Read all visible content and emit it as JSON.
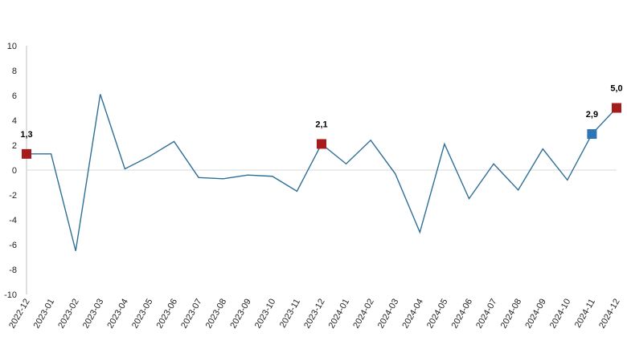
{
  "chart_data": {
    "type": "line",
    "title": "",
    "xlabel": "",
    "ylabel": "",
    "ylim": [
      -10,
      10
    ],
    "yticks": [
      10,
      8,
      6,
      4,
      2,
      0,
      -2,
      -4,
      -6,
      -8,
      -10
    ],
    "grid": false,
    "categories": [
      "2022-12",
      "2023-01",
      "2023-02",
      "2023-03",
      "2023-04",
      "2023-05",
      "2023-06",
      "2023-07",
      "2023-08",
      "2023-09",
      "2023-10",
      "2023-11",
      "2023-12",
      "2024-01",
      "2024-02",
      "2024-03",
      "2024-04",
      "2024-05",
      "2024-06",
      "2024-07",
      "2024-08",
      "2024-09",
      "2024-10",
      "2024-11",
      "2024-12"
    ],
    "series": [
      {
        "values": [
          1.3,
          1.3,
          -6.5,
          6.1,
          0.1,
          1.1,
          2.3,
          -0.6,
          -0.7,
          -0.4,
          -0.5,
          -1.7,
          2.1,
          0.5,
          2.4,
          -0.3,
          -5.0,
          2.1,
          -2.3,
          0.5,
          -1.6,
          1.7,
          -0.8,
          2.9,
          5.0
        ]
      }
    ],
    "highlighted_points": [
      {
        "category": "2022-12",
        "value": 1.3,
        "label": "1,3",
        "color": "#a61c1c"
      },
      {
        "category": "2023-12",
        "value": 2.1,
        "label": "2,1",
        "color": "#a61c1c"
      },
      {
        "category": "2024-11",
        "value": 2.9,
        "label": "2,9",
        "color": "#2e75b6"
      },
      {
        "category": "2024-12",
        "value": 5.0,
        "label": "5,0",
        "color": "#a61c1c"
      }
    ],
    "colors": {
      "line": "#2e6f96",
      "axis": "#bfbfbf",
      "zero_line": "#d9d9d9"
    }
  }
}
